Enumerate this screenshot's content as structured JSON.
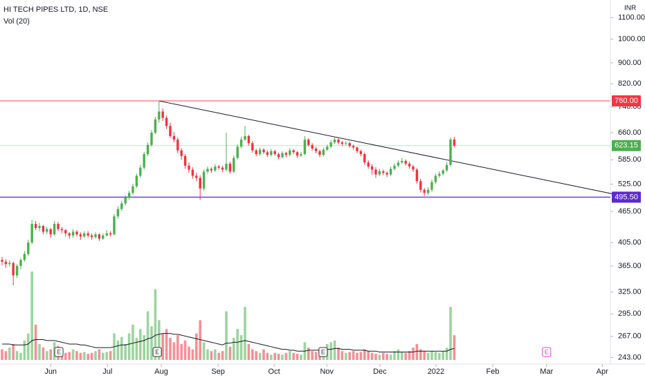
{
  "chart_data": {
    "type": "candlestick",
    "title": "HI TECH PIPES LTD, 1D, NSE",
    "subtitle": "Vol (20)",
    "currency": "INR",
    "log_scale": true,
    "grid": false,
    "up_color": "#4caf50",
    "down_color": "#ef3340",
    "ylim": [
      236,
      1190
    ],
    "yticks": [
      {
        "value": 1100,
        "label": "1100.00"
      },
      {
        "value": 1000,
        "label": "1000.00"
      },
      {
        "value": 900,
        "label": "900.00"
      },
      {
        "value": 820,
        "label": "820.00"
      },
      {
        "value": 740,
        "label": "740.00"
      },
      {
        "value": 660,
        "label": "660.00"
      },
      {
        "value": 585,
        "label": "585.00"
      },
      {
        "value": 525,
        "label": "525.00"
      },
      {
        "value": 465,
        "label": "465.00"
      },
      {
        "value": 405,
        "label": "405.00"
      },
      {
        "value": 365,
        "label": "365.00"
      },
      {
        "value": 325,
        "label": "325.00"
      },
      {
        "value": 295,
        "label": "295.00"
      },
      {
        "value": 267,
        "label": "267.00"
      },
      {
        "value": 243,
        "label": "243.00"
      }
    ],
    "xticks": [
      {
        "value": 13,
        "label": "Jun"
      },
      {
        "value": 28.2,
        "label": "Jul"
      },
      {
        "value": 42.6,
        "label": "Aug"
      },
      {
        "value": 57.8,
        "label": "Sep"
      },
      {
        "value": 72.8,
        "label": "Oct"
      },
      {
        "value": 86.9,
        "label": "Nov"
      },
      {
        "value": 101.1,
        "label": "Dec"
      },
      {
        "value": 116.1,
        "label": "2022"
      },
      {
        "value": 131.3,
        "label": "Feb"
      },
      {
        "value": 145.7,
        "label": "Mar"
      },
      {
        "value": 160.6,
        "label": "Apr"
      }
    ],
    "ohlc": [
      [
        375,
        380,
        366,
        372
      ],
      [
        372,
        376,
        362,
        368
      ],
      [
        368,
        374,
        364,
        370
      ],
      [
        370,
        372,
        335,
        350
      ],
      [
        350,
        368,
        346,
        365
      ],
      [
        365,
        378,
        360,
        375
      ],
      [
        375,
        390,
        372,
        385
      ],
      [
        385,
        410,
        382,
        405
      ],
      [
        405,
        448,
        402,
        440
      ],
      [
        440,
        446,
        428,
        432
      ],
      [
        432,
        442,
        426,
        436
      ],
      [
        436,
        438,
        420,
        425
      ],
      [
        425,
        434,
        420,
        430
      ],
      [
        430,
        432,
        414,
        420
      ],
      [
        420,
        446,
        418,
        440
      ],
      [
        440,
        444,
        426,
        430
      ],
      [
        430,
        434,
        422,
        428
      ],
      [
        428,
        430,
        416,
        422
      ],
      [
        422,
        424,
        412,
        418
      ],
      [
        418,
        430,
        414,
        425
      ],
      [
        425,
        428,
        416,
        420
      ],
      [
        420,
        424,
        410,
        416
      ],
      [
        416,
        426,
        414,
        422
      ],
      [
        422,
        426,
        414,
        418
      ],
      [
        418,
        422,
        410,
        415
      ],
      [
        415,
        424,
        412,
        420
      ],
      [
        420,
        422,
        408,
        412
      ],
      [
        412,
        422,
        410,
        418
      ],
      [
        418,
        428,
        416,
        422
      ],
      [
        422,
        426,
        416,
        420
      ],
      [
        420,
        460,
        418,
        455
      ],
      [
        455,
        476,
        450,
        470
      ],
      [
        470,
        488,
        466,
        482
      ],
      [
        482,
        500,
        478,
        495
      ],
      [
        495,
        510,
        490,
        505
      ],
      [
        505,
        526,
        500,
        520
      ],
      [
        520,
        550,
        516,
        545
      ],
      [
        545,
        572,
        540,
        565
      ],
      [
        565,
        606,
        560,
        600
      ],
      [
        600,
        632,
        595,
        625
      ],
      [
        625,
        668,
        620,
        660
      ],
      [
        660,
        708,
        655,
        700
      ],
      [
        700,
        760,
        690,
        725
      ],
      [
        725,
        735,
        695,
        705
      ],
      [
        705,
        712,
        670,
        680
      ],
      [
        680,
        690,
        645,
        650
      ],
      [
        650,
        662,
        632,
        640
      ],
      [
        640,
        646,
        602,
        610
      ],
      [
        610,
        616,
        585,
        595
      ],
      [
        595,
        600,
        562,
        570
      ],
      [
        570,
        578,
        552,
        560
      ],
      [
        560,
        566,
        538,
        545
      ],
      [
        545,
        552,
        532,
        540
      ],
      [
        540,
        546,
        490,
        515
      ],
      [
        515,
        560,
        510,
        555
      ],
      [
        555,
        568,
        550,
        562
      ],
      [
        562,
        566,
        552,
        558
      ],
      [
        558,
        574,
        554,
        568
      ],
      [
        568,
        572,
        560,
        565
      ],
      [
        565,
        570,
        554,
        560
      ],
      [
        560,
        660,
        556,
        575
      ],
      [
        575,
        580,
        550,
        555
      ],
      [
        555,
        596,
        552,
        590
      ],
      [
        590,
        626,
        586,
        620
      ],
      [
        620,
        648,
        616,
        640
      ],
      [
        640,
        680,
        636,
        650
      ],
      [
        650,
        654,
        624,
        630
      ],
      [
        630,
        636,
        604,
        610
      ],
      [
        610,
        614,
        594,
        600
      ],
      [
        600,
        618,
        596,
        612
      ],
      [
        612,
        616,
        600,
        605
      ],
      [
        605,
        610,
        592,
        598
      ],
      [
        598,
        614,
        594,
        608
      ],
      [
        608,
        612,
        596,
        600
      ],
      [
        600,
        604,
        586,
        592
      ],
      [
        592,
        608,
        588,
        603
      ],
      [
        603,
        606,
        592,
        598
      ],
      [
        598,
        616,
        594,
        610
      ],
      [
        610,
        614,
        600,
        605
      ],
      [
        605,
        608,
        590,
        596
      ],
      [
        596,
        606,
        592,
        600
      ],
      [
        600,
        650,
        598,
        640
      ],
      [
        640,
        644,
        620,
        625
      ],
      [
        625,
        630,
        610,
        615
      ],
      [
        615,
        620,
        602,
        608
      ],
      [
        608,
        612,
        592,
        598
      ],
      [
        598,
        618,
        594,
        612
      ],
      [
        612,
        626,
        608,
        620
      ],
      [
        620,
        638,
        616,
        632
      ],
      [
        632,
        648,
        628,
        640
      ],
      [
        640,
        644,
        626,
        632
      ],
      [
        632,
        636,
        622,
        628
      ],
      [
        628,
        636,
        624,
        630
      ],
      [
        630,
        634,
        618,
        622
      ],
      [
        622,
        626,
        612,
        618
      ],
      [
        618,
        620,
        602,
        608
      ],
      [
        608,
        612,
        594,
        600
      ],
      [
        600,
        604,
        572,
        578
      ],
      [
        578,
        584,
        562,
        568
      ],
      [
        568,
        574,
        548,
        560
      ],
      [
        560,
        566,
        540,
        548
      ],
      [
        548,
        562,
        544,
        556
      ],
      [
        556,
        560,
        546,
        552
      ],
      [
        552,
        556,
        542,
        548
      ],
      [
        548,
        568,
        544,
        562
      ],
      [
        562,
        576,
        558,
        570
      ],
      [
        570,
        584,
        566,
        578
      ],
      [
        578,
        590,
        574,
        582
      ],
      [
        582,
        586,
        570,
        575
      ],
      [
        575,
        580,
        562,
        568
      ],
      [
        568,
        572,
        554,
        560
      ],
      [
        560,
        564,
        526,
        532
      ],
      [
        532,
        538,
        506,
        512
      ],
      [
        512,
        516,
        498,
        505
      ],
      [
        505,
        518,
        500,
        512
      ],
      [
        512,
        536,
        508,
        530
      ],
      [
        530,
        550,
        526,
        545
      ],
      [
        545,
        556,
        540,
        550
      ],
      [
        550,
        562,
        546,
        558
      ],
      [
        558,
        580,
        554,
        572
      ],
      [
        572,
        646,
        568,
        640
      ],
      [
        640,
        648,
        618,
        623
      ]
    ],
    "volume_lim": [
      0,
      100
    ],
    "volume": [
      12,
      10,
      14,
      18,
      10,
      8,
      22,
      30,
      100,
      40,
      18,
      14,
      10,
      12,
      20,
      16,
      10,
      8,
      9,
      12,
      10,
      8,
      9,
      7,
      8,
      10,
      12,
      8,
      9,
      10,
      30,
      22,
      26,
      18,
      30,
      40,
      25,
      35,
      28,
      55,
      38,
      80,
      45,
      30,
      35,
      25,
      20,
      28,
      18,
      22,
      15,
      12,
      30,
      45,
      20,
      12,
      10,
      12,
      8,
      10,
      55,
      15,
      25,
      35,
      28,
      60,
      18,
      12,
      10,
      8,
      12,
      8,
      6,
      8,
      7,
      6,
      8,
      10,
      8,
      7,
      6,
      20,
      14,
      10,
      9,
      12,
      14,
      18,
      20,
      22,
      14,
      10,
      8,
      9,
      10,
      8,
      9,
      12,
      10,
      8,
      7,
      6,
      8,
      7,
      6,
      10,
      12,
      9,
      8,
      10,
      14,
      18,
      12,
      10,
      8,
      10,
      9,
      8,
      10,
      14,
      60,
      28
    ],
    "volume_ma": [
      18,
      18,
      18,
      17,
      17,
      17,
      17,
      18,
      22,
      23,
      23,
      23,
      22,
      22,
      22,
      21,
      20,
      19,
      18,
      18,
      18,
      17,
      17,
      16,
      15,
      14,
      14,
      14,
      14,
      14,
      15,
      16,
      17,
      17,
      18,
      19,
      20,
      21,
      22,
      24,
      25,
      28,
      29,
      30,
      30,
      30,
      29,
      29,
      28,
      27,
      26,
      25,
      24,
      23,
      22,
      21,
      20,
      19,
      18,
      17,
      19,
      19,
      20,
      20,
      21,
      22,
      21,
      20,
      19,
      18,
      17,
      16,
      15,
      14,
      13,
      12,
      12,
      11,
      11,
      10,
      10,
      10,
      11,
      11,
      11,
      11,
      11,
      12,
      12,
      13,
      13,
      12,
      12,
      12,
      11,
      11,
      11,
      11,
      10,
      10,
      10,
      9,
      9,
      9,
      9,
      9,
      9,
      9,
      9,
      9,
      9,
      10,
      10,
      10,
      10,
      10,
      10,
      10,
      10,
      10,
      12,
      13
    ],
    "price_lines": [
      {
        "value": 760,
        "label": "760.00",
        "color": "#f23645"
      },
      {
        "value": 623.15,
        "label": "623.15",
        "color": "#4caf50"
      },
      {
        "value": 495.5,
        "label": "495.50",
        "color": "#5b2bd0"
      }
    ],
    "trendline": [
      [
        42,
        760
      ],
      [
        163.3,
        503
      ]
    ],
    "events": [
      {
        "x": 15.2,
        "label": "E",
        "color": "#333333"
      },
      {
        "x": 41.5,
        "label": "E",
        "color": "#333333"
      },
      {
        "x": 85.9,
        "label": "E",
        "color": "#333333"
      },
      {
        "x": 145.7,
        "label": "E",
        "color": "#d63fd6"
      }
    ]
  }
}
